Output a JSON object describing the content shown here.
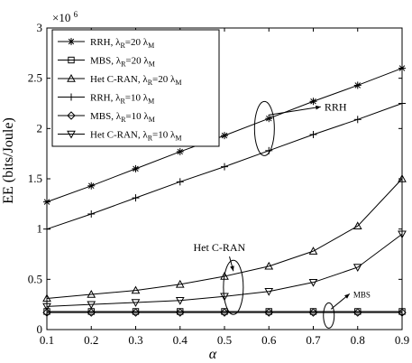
{
  "chart_data": {
    "type": "line",
    "xlabel": "α",
    "ylabel": "EE (bits/Joule)",
    "y_multiplier_label": "×10",
    "y_multiplier_exponent": "6",
    "xlim": [
      0.1,
      0.9
    ],
    "ylim": [
      0,
      3
    ],
    "x_ticks": [
      "0.1",
      "0.2",
      "0.3",
      "0.4",
      "0.5",
      "0.6",
      "0.7",
      "0.8",
      "0.9"
    ],
    "y_ticks": [
      "0",
      "0.5",
      "1",
      "1.5",
      "2",
      "2.5",
      "3"
    ],
    "y_tick_values": [
      0,
      0.5,
      1,
      1.5,
      2,
      2.5,
      3
    ],
    "grid": false,
    "legend_position": "top-left",
    "x": [
      0.1,
      0.2,
      0.3,
      0.4,
      0.5,
      0.6,
      0.7,
      0.8,
      0.9
    ],
    "series": [
      {
        "name_base": "RRH, λ",
        "name_sub1": "R",
        "name_mid": "=20 λ",
        "name_sub2": "M",
        "marker": "asterisk",
        "values": [
          1.27,
          1.43,
          1.6,
          1.77,
          1.93,
          2.1,
          2.27,
          2.43,
          2.6
        ]
      },
      {
        "name_base": "MBS, λ",
        "name_sub1": "R",
        "name_mid": "=20 λ",
        "name_sub2": "M",
        "marker": "square",
        "values": [
          0.18,
          0.18,
          0.18,
          0.18,
          0.18,
          0.18,
          0.18,
          0.18,
          0.18
        ]
      },
      {
        "name_base": "Het C-RAN,  λ",
        "name_sub1": "R",
        "name_mid": "=20 λ",
        "name_sub2": "M",
        "marker": "triangle-up",
        "values": [
          0.31,
          0.35,
          0.39,
          0.45,
          0.53,
          0.63,
          0.78,
          1.03,
          1.5
        ]
      },
      {
        "name_base": "RRH,  λ",
        "name_sub1": "R",
        "name_mid": "=10 λ",
        "name_sub2": "M",
        "marker": "plus",
        "values": [
          1.0,
          1.15,
          1.31,
          1.47,
          1.62,
          1.78,
          1.94,
          2.09,
          2.25
        ]
      },
      {
        "name_base": "MBS,  λ",
        "name_sub1": "R",
        "name_mid": "=10 λ",
        "name_sub2": "M",
        "marker": "diamond",
        "values": [
          0.17,
          0.17,
          0.17,
          0.17,
          0.17,
          0.17,
          0.17,
          0.17,
          0.17
        ]
      },
      {
        "name_base": "Het C-RAN,  λ",
        "name_sub1": "R",
        "name_mid": "=10 λ",
        "name_sub2": "M",
        "marker": "triangle-down",
        "values": [
          0.23,
          0.25,
          0.27,
          0.29,
          0.33,
          0.38,
          0.47,
          0.62,
          0.95
        ]
      }
    ],
    "annotations": [
      {
        "text": "RRH",
        "ellipse_x": 0.59,
        "ellipse_y": 2.0,
        "text_x": 0.725,
        "text_y": 2.18,
        "size": "normal"
      },
      {
        "text": "Het C-RAN",
        "ellipse_x": 0.52,
        "ellipse_y": 0.42,
        "text_x": 0.43,
        "text_y": 0.78,
        "size": "normal"
      },
      {
        "text": "MBS",
        "ellipse_x": 0.735,
        "ellipse_y": 0.14,
        "text_x": 0.79,
        "text_y": 0.32,
        "size": "small"
      }
    ]
  }
}
